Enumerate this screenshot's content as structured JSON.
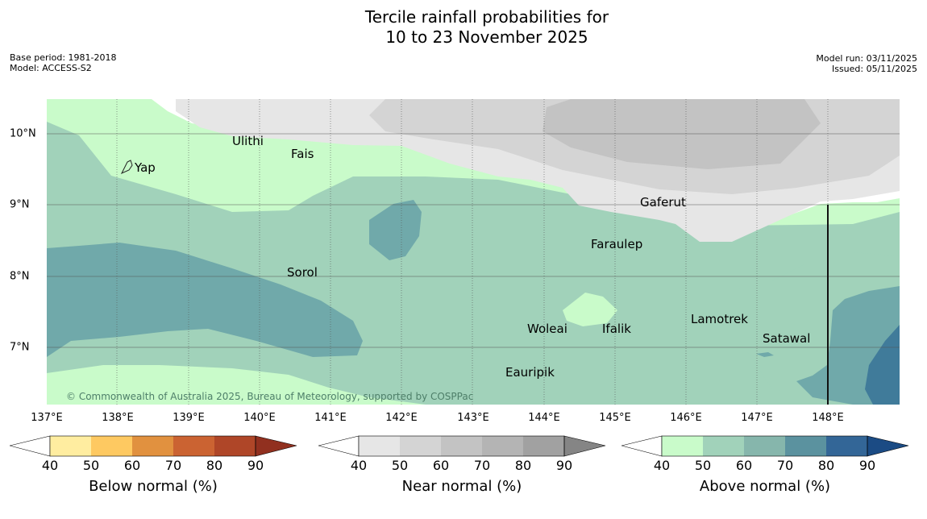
{
  "title": {
    "line1": "Tercile rainfall probabilities for",
    "line2": "10 to 23 November 2025"
  },
  "meta": {
    "base_period": "Base period: 1981-2018",
    "model": "Model: ACCESS-S2",
    "model_run": "Model run: 03/11/2025",
    "issued": "Issued: 05/11/2025"
  },
  "map": {
    "longitude_labels": [
      "137°E",
      "138°E",
      "139°E",
      "140°E",
      "141°E",
      "142°E",
      "143°E",
      "144°E",
      "145°E",
      "146°E",
      "147°E",
      "148°E"
    ],
    "latitude_labels": [
      "10°N",
      "9°N",
      "8°N",
      "7°N"
    ],
    "places": [
      "Ulithi",
      "Fais",
      "Yap",
      "Gaferut",
      "Faraulep",
      "Sorol",
      "Woleai",
      "Ifalik",
      "Lamotrek",
      "Satawal",
      "Eauripik"
    ],
    "copyright": "© Commonwealth of Australia 2025, Bureau of Meteorology, supported by COSPPac"
  },
  "legend": {
    "ticks": [
      "40",
      "50",
      "60",
      "70",
      "80",
      "90"
    ],
    "below": {
      "title": "Below normal (%)",
      "colors": [
        "#ffeda0",
        "#fec961",
        "#e1913f",
        "#cb6332",
        "#af4628",
        "#91301f"
      ]
    },
    "near": {
      "title": "Near normal (%)",
      "colors": [
        "#e6e6e6",
        "#d4d4d4",
        "#c3c3c3",
        "#b4b4b4",
        "#a1a1a1",
        "#858585"
      ]
    },
    "above": {
      "title": "Above normal (%)",
      "colors": [
        "#c9fbca",
        "#a1d2ba",
        "#86b6ac",
        "#5b929f",
        "#336697",
        "#1b4b84"
      ]
    }
  }
}
